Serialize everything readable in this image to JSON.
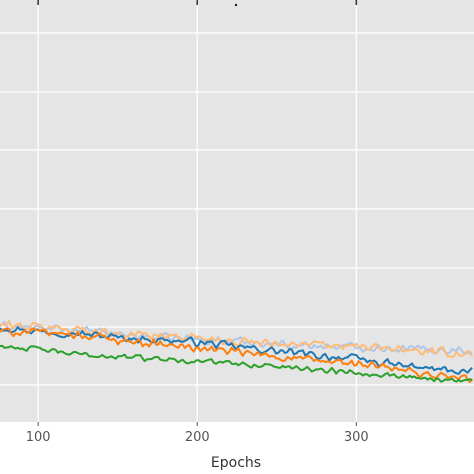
{
  "chart_data": {
    "type": "line",
    "title": "",
    "xlabel": "Epochs",
    "ylabel": "",
    "xlim": [
      76,
      374
    ],
    "ylim": [
      0,
      1
    ],
    "grid": true,
    "legend": "none",
    "x_ticks": [
      {
        "value": 100,
        "label": "100"
      },
      {
        "value": 200,
        "label": "200"
      },
      {
        "value": 300,
        "label": "300"
      }
    ],
    "y_gridlines": [
      0.088,
      0.225,
      0.365,
      0.505,
      0.645,
      0.782,
      0.922
    ],
    "x_gridlines": [
      100,
      200,
      300
    ],
    "plot_background": "#e5e5e5",
    "grid_color": "#ffffff",
    "series": [
      {
        "color": "#1f77b4",
        "x": [
          76,
          100,
          125,
          150,
          175,
          200,
          225,
          250,
          275,
          300,
          325,
          350,
          374
        ],
        "values": [
          0.225,
          0.215,
          0.21,
          0.2,
          0.195,
          0.19,
          0.178,
          0.168,
          0.158,
          0.15,
          0.135,
          0.125,
          0.118
        ],
        "noise": 0.011
      },
      {
        "color": "#aec7e8",
        "x": [
          76,
          100,
          125,
          150,
          175,
          200,
          225,
          250,
          275,
          300,
          325,
          350,
          374
        ],
        "values": [
          0.228,
          0.222,
          0.218,
          0.208,
          0.2,
          0.196,
          0.192,
          0.185,
          0.18,
          0.178,
          0.175,
          0.172,
          0.17
        ],
        "noise": 0.012
      },
      {
        "color": "#ff7f0e",
        "x": [
          76,
          100,
          125,
          150,
          175,
          200,
          225,
          250,
          275,
          300,
          325,
          350,
          374
        ],
        "values": [
          0.215,
          0.212,
          0.207,
          0.195,
          0.185,
          0.175,
          0.165,
          0.155,
          0.145,
          0.138,
          0.125,
          0.11,
          0.1
        ],
        "noise": 0.012
      },
      {
        "color": "#ffbb78",
        "x": [
          76,
          100,
          125,
          150,
          175,
          200,
          225,
          250,
          275,
          300,
          325,
          350,
          374
        ],
        "values": [
          0.23,
          0.225,
          0.22,
          0.21,
          0.205,
          0.2,
          0.192,
          0.188,
          0.182,
          0.178,
          0.172,
          0.165,
          0.16
        ],
        "noise": 0.013
      },
      {
        "color": "#2ca02c",
        "x": [
          76,
          100,
          125,
          150,
          175,
          200,
          225,
          250,
          275,
          300,
          325,
          350,
          374
        ],
        "values": [
          0.18,
          0.172,
          0.16,
          0.155,
          0.15,
          0.145,
          0.138,
          0.132,
          0.125,
          0.118,
          0.11,
          0.102,
          0.097
        ],
        "noise": 0.008
      }
    ]
  }
}
